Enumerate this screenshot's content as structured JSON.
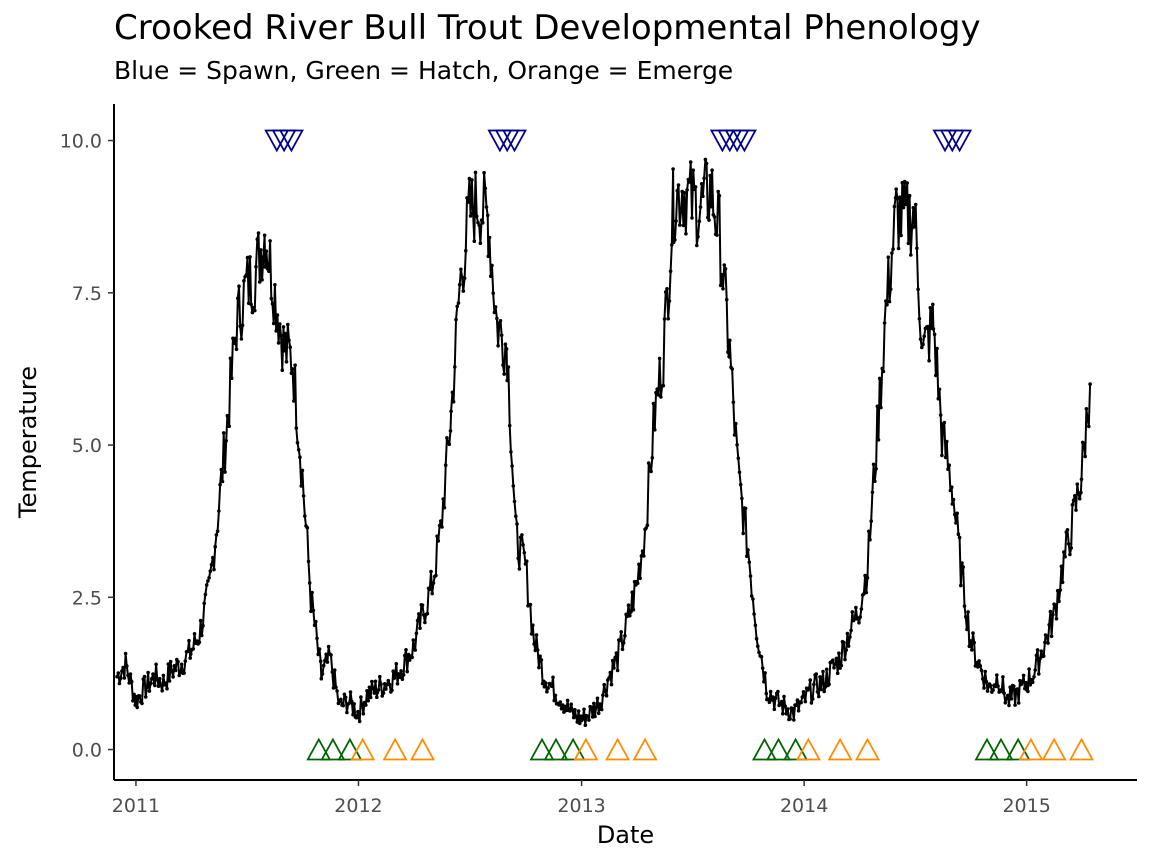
{
  "chart_data": {
    "type": "line",
    "title": "Crooked River Bull Trout Developmental Phenology",
    "subtitle": "Blue = Spawn, Green = Hatch, Orange = Emerge",
    "xlabel": "Date",
    "ylabel": "Temperature",
    "xlim": [
      "2010-11-26",
      "2015-07-01"
    ],
    "ylim": [
      -0.5,
      10.6
    ],
    "x_ticks": [
      "2011",
      "2012",
      "2013",
      "2014",
      "2015"
    ],
    "y_ticks": [
      "0.0",
      "2.5",
      "5.0",
      "7.5",
      "10.0"
    ],
    "grid": false,
    "colors": {
      "line": "#000000",
      "spawn": "#00008b",
      "hatch": "#006400",
      "emerge": "#ff8c00"
    },
    "series": [
      {
        "type": "line",
        "points": [
          [
            "2010-12-01",
            1.2
          ],
          [
            "2010-12-15",
            1.4
          ],
          [
            "2011-01-01",
            0.8
          ],
          [
            "2011-01-15",
            1.0
          ],
          [
            "2011-02-01",
            1.2
          ],
          [
            "2011-02-15",
            1.1
          ],
          [
            "2011-03-01",
            1.3
          ],
          [
            "2011-03-15",
            1.4
          ],
          [
            "2011-04-01",
            1.6
          ],
          [
            "2011-04-15",
            1.9
          ],
          [
            "2011-05-01",
            2.6
          ],
          [
            "2011-05-15",
            3.8
          ],
          [
            "2011-06-01",
            5.5
          ],
          [
            "2011-06-15",
            7.0
          ],
          [
            "2011-07-01",
            7.6
          ],
          [
            "2011-07-15",
            7.8
          ],
          [
            "2011-08-01",
            8.5
          ],
          [
            "2011-08-15",
            7.6
          ],
          [
            "2011-09-01",
            6.6
          ],
          [
            "2011-09-15",
            6.4
          ],
          [
            "2011-10-01",
            4.5
          ],
          [
            "2011-10-15",
            2.5
          ],
          [
            "2011-11-01",
            1.2
          ],
          [
            "2011-11-15",
            1.5
          ],
          [
            "2011-12-01",
            0.7
          ],
          [
            "2011-12-15",
            0.8
          ],
          [
            "2012-01-01",
            0.6
          ],
          [
            "2012-01-15",
            0.9
          ],
          [
            "2012-02-01",
            1.0
          ],
          [
            "2012-02-15",
            1.1
          ],
          [
            "2012-03-01",
            1.2
          ],
          [
            "2012-03-15",
            1.4
          ],
          [
            "2012-04-01",
            1.7
          ],
          [
            "2012-04-15",
            2.2
          ],
          [
            "2012-05-01",
            2.7
          ],
          [
            "2012-05-15",
            3.6
          ],
          [
            "2012-06-01",
            5.5
          ],
          [
            "2012-06-15",
            7.6
          ],
          [
            "2012-07-01",
            8.8
          ],
          [
            "2012-07-15",
            9.0
          ],
          [
            "2012-08-01",
            8.7
          ],
          [
            "2012-08-15",
            7.0
          ],
          [
            "2012-09-01",
            6.6
          ],
          [
            "2012-09-15",
            3.5
          ],
          [
            "2012-10-01",
            3.0
          ],
          [
            "2012-10-15",
            1.8
          ],
          [
            "2012-11-01",
            1.2
          ],
          [
            "2012-11-15",
            1.0
          ],
          [
            "2012-12-01",
            0.8
          ],
          [
            "2012-12-15",
            0.6
          ],
          [
            "2013-01-01",
            0.5
          ],
          [
            "2013-01-15",
            0.6
          ],
          [
            "2013-02-01",
            0.8
          ],
          [
            "2013-02-15",
            1.2
          ],
          [
            "2013-03-01",
            1.5
          ],
          [
            "2013-03-15",
            2.0
          ],
          [
            "2013-04-01",
            2.7
          ],
          [
            "2013-04-15",
            3.6
          ],
          [
            "2013-05-01",
            5.5
          ],
          [
            "2013-05-15",
            6.5
          ],
          [
            "2013-06-01",
            9.0
          ],
          [
            "2013-06-15",
            9.2
          ],
          [
            "2013-07-01",
            9.0
          ],
          [
            "2013-07-15",
            8.9
          ],
          [
            "2013-08-01",
            9.2
          ],
          [
            "2013-08-15",
            8.5
          ],
          [
            "2013-09-01",
            6.5
          ],
          [
            "2013-09-15",
            4.5
          ],
          [
            "2013-10-01",
            3.3
          ],
          [
            "2013-10-15",
            2.0
          ],
          [
            "2013-11-01",
            1.0
          ],
          [
            "2013-11-15",
            0.8
          ],
          [
            "2013-12-01",
            0.7
          ],
          [
            "2013-12-15",
            0.6
          ],
          [
            "2014-01-01",
            0.8
          ],
          [
            "2014-01-15",
            1.0
          ],
          [
            "2014-02-01",
            1.1
          ],
          [
            "2014-02-15",
            1.3
          ],
          [
            "2014-03-01",
            1.5
          ],
          [
            "2014-03-15",
            1.9
          ],
          [
            "2014-04-01",
            2.3
          ],
          [
            "2014-04-15",
            3.0
          ],
          [
            "2014-05-01",
            5.2
          ],
          [
            "2014-05-15",
            7.2
          ],
          [
            "2014-06-01",
            8.8
          ],
          [
            "2014-06-15",
            8.7
          ],
          [
            "2014-07-01",
            8.8
          ],
          [
            "2014-07-15",
            6.5
          ],
          [
            "2014-08-01",
            7.0
          ],
          [
            "2014-08-15",
            5.2
          ],
          [
            "2014-09-01",
            4.3
          ],
          [
            "2014-09-15",
            3.0
          ],
          [
            "2014-10-01",
            1.8
          ],
          [
            "2014-10-15",
            1.4
          ],
          [
            "2014-11-01",
            1.0
          ],
          [
            "2014-11-15",
            1.2
          ],
          [
            "2014-12-01",
            0.8
          ],
          [
            "2014-12-15",
            0.9
          ],
          [
            "2015-01-01",
            1.1
          ],
          [
            "2015-01-15",
            1.3
          ],
          [
            "2015-02-01",
            1.8
          ],
          [
            "2015-02-15",
            2.2
          ],
          [
            "2015-03-01",
            3.0
          ],
          [
            "2015-03-15",
            3.6
          ],
          [
            "2015-04-01",
            4.5
          ],
          [
            "2015-04-15",
            6.0
          ]
        ]
      },
      {
        "name": "Spawn",
        "type": "scatter",
        "marker": "triangle-down",
        "y": 10.0,
        "x": [
          "2011-08-20",
          "2011-09-01",
          "2011-09-13",
          "2012-08-20",
          "2012-09-01",
          "2012-09-13",
          "2013-08-20",
          "2013-09-01",
          "2013-09-13",
          "2013-09-25",
          "2014-08-20",
          "2014-09-01",
          "2014-09-13"
        ]
      },
      {
        "name": "Hatch",
        "type": "scatter",
        "marker": "triangle-up",
        "y": 0.0,
        "x": [
          "2011-10-28",
          "2011-11-20",
          "2011-12-18",
          "2012-10-28",
          "2012-11-20",
          "2012-12-18",
          "2013-10-28",
          "2013-11-20",
          "2013-12-18",
          "2014-10-28",
          "2014-11-20",
          "2014-12-18"
        ]
      },
      {
        "name": "Emerge",
        "type": "scatter",
        "marker": "triangle-up",
        "y": 0.0,
        "x": [
          "2012-01-08",
          "2012-03-01",
          "2012-04-15",
          "2013-01-08",
          "2013-03-01",
          "2013-04-15",
          "2014-01-08",
          "2014-03-01",
          "2014-04-15",
          "2015-01-08",
          "2015-02-15",
          "2015-04-01"
        ]
      }
    ]
  }
}
